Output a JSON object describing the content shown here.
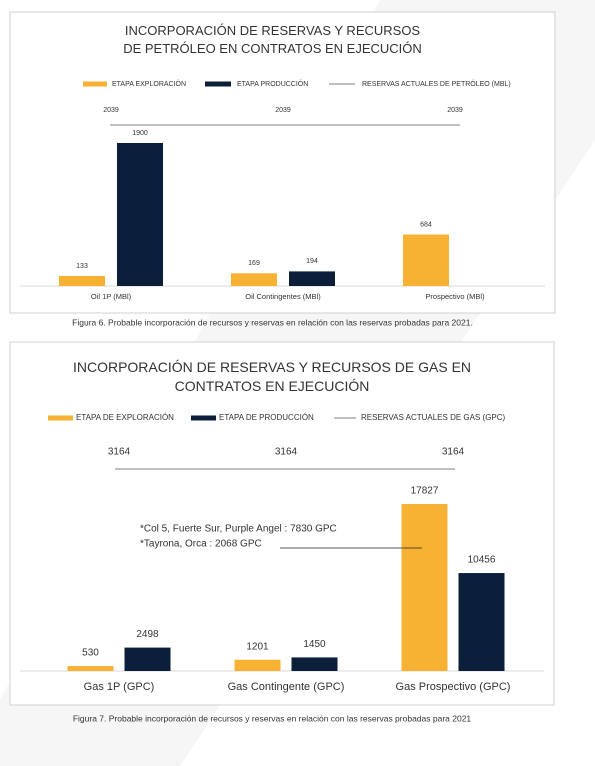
{
  "chart_data": [
    {
      "type": "bar",
      "title": "INCORPORACIÓN DE RESERVAS Y RECURSOS DE PETRÓLEO EN CONTRATOS EN EJECUCIÓN",
      "categories": [
        "Oil 1P (MBl)",
        "Oil Contingentes (MBl)",
        "Prospectivo (MBl)"
      ],
      "series": [
        {
          "name": "ETAPA EXPLORACIÓN",
          "color": "#f7b234",
          "values": [
            133,
            169,
            684
          ]
        },
        {
          "name": "ETAPA PRODUCCIÓN",
          "color": "#0b1f3a",
          "values": [
            1900,
            194,
            null
          ]
        },
        {
          "name": "RESERVAS ACTUALES DE PETRÓLEO (MBL)",
          "type": "line",
          "color": "#555555",
          "values": [
            2039,
            2039,
            2039
          ]
        }
      ]
    },
    {
      "type": "bar",
      "title": "INCORPORACIÓN DE RESERVAS Y RECURSOS DE GAS EN CONTRATOS EN EJECUCIÓN",
      "categories": [
        "Gas 1P (GPC)",
        "Gas Contingente (GPC)",
        "Gas Prospectivo (GPC)"
      ],
      "series": [
        {
          "name": "ETAPA DE EXPLORACIÓN",
          "color": "#f7b234",
          "values": [
            530,
            1201,
            17827
          ]
        },
        {
          "name": "ETAPA DE PRODUCCIÓN",
          "color": "#0b1f3a",
          "values": [
            2498,
            1450,
            10456
          ]
        },
        {
          "name": "RESERVAS ACTUALES DE GAS (GPC)",
          "type": "line",
          "color": "#555555",
          "values": [
            3164,
            3164,
            3164
          ]
        }
      ],
      "annotations": [
        "*Col 5, Fuerte Sur, Purple Angel : 7830 GPC",
        "*Tayrona, Orca :  2068 GPC"
      ]
    }
  ],
  "captions": [
    "Figura 6. Probable incorporación de recursos y reservas en relación con las reservas probadas para 2021.",
    "Figura 7. Probable incorporación de recursos y reservas en relación con las reservas probadas para 2021"
  ]
}
